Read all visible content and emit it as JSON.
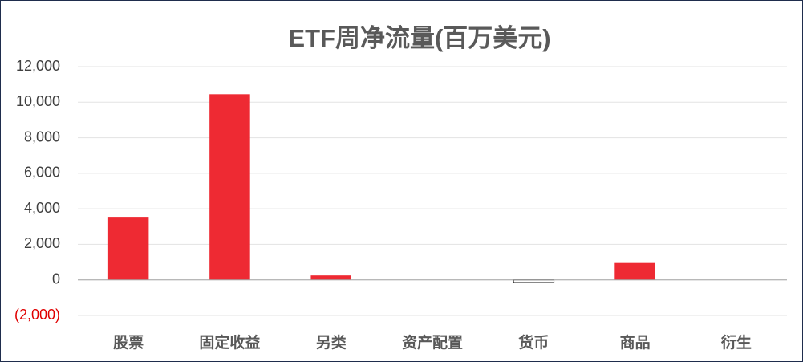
{
  "chart_data": {
    "type": "bar",
    "title": "ETF周净流量(百万美元)",
    "categories": [
      "股票",
      "固定收益",
      "另类",
      "资产配置",
      "货币",
      "商品",
      "衍生"
    ],
    "values": [
      3550,
      10450,
      250,
      0,
      -150,
      950,
      0
    ],
    "color": "#ee2a33",
    "invert_if_negative": true,
    "negative_tick_color": "#e00000",
    "ylim": [
      -2000,
      12000
    ],
    "yticks": [
      {
        "value": -2000,
        "label": "(2,000)"
      },
      0,
      {
        "value": 2000,
        "label": "2,000"
      },
      {
        "value": 4000,
        "label": "4,000"
      },
      {
        "value": 6000,
        "label": "6,000"
      },
      {
        "value": 8000,
        "label": "8,000"
      },
      {
        "value": 10000,
        "label": "10,000"
      },
      {
        "value": 12000,
        "label": "12,000"
      }
    ],
    "grid": true
  }
}
